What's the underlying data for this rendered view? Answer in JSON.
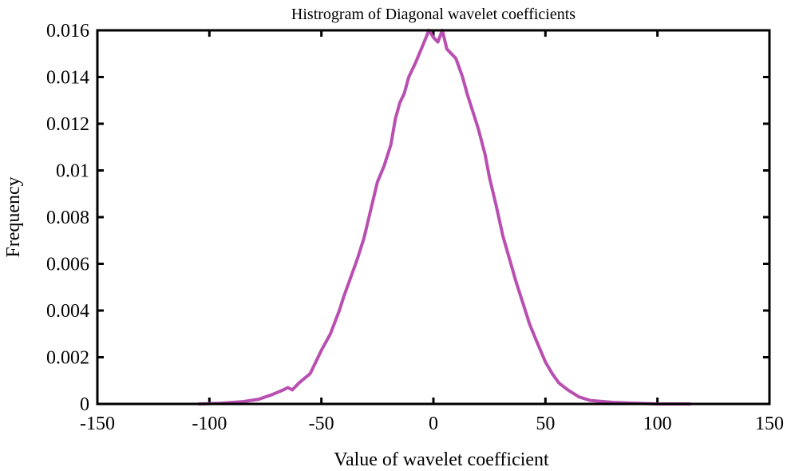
{
  "chart_data": {
    "type": "line",
    "title": "Histrogram of Diagonal wavelet coefficients",
    "xlabel": "Value of wavelet coefficient",
    "ylabel": "Frequency",
    "xlim": [
      -150,
      150
    ],
    "ylim": [
      0,
      0.016
    ],
    "xticks": [
      "-150",
      "-100",
      "-50",
      "0",
      "50",
      "100",
      "150"
    ],
    "yticks": [
      "0",
      "0.002",
      "0.004",
      "0.006",
      "0.008",
      "0.01",
      "0.012",
      "0.014",
      "0.016"
    ],
    "grid": false,
    "line_color": "#b94fb0",
    "series": [
      {
        "x": [
          -105,
          -95,
          -85,
          -78,
          -72,
          -67,
          -65,
          -63,
          -60,
          -55,
          -52,
          -50,
          -46,
          -42,
          -40,
          -37,
          -34,
          -31,
          -28,
          -25,
          -22,
          -19,
          -17,
          -15,
          -13,
          -11,
          -8,
          -5,
          -2,
          0,
          2,
          4,
          6,
          8,
          10,
          13,
          15,
          18,
          20,
          23,
          25,
          28,
          31,
          34,
          37,
          40,
          43,
          46,
          50,
          53,
          56,
          60,
          65,
          70,
          80,
          90,
          100,
          115
        ],
        "y": [
          0,
          3e-05,
          0.0001,
          0.0002,
          0.0004,
          0.0006,
          0.0007,
          0.0006,
          0.0009,
          0.0013,
          0.0019,
          0.0023,
          0.003,
          0.004,
          0.0046,
          0.0054,
          0.0062,
          0.0071,
          0.0083,
          0.0095,
          0.0102,
          0.0111,
          0.0122,
          0.0129,
          0.0133,
          0.014,
          0.0146,
          0.0153,
          0.016,
          0.0157,
          0.0155,
          0.016,
          0.0152,
          0.015,
          0.0148,
          0.014,
          0.0133,
          0.0124,
          0.0118,
          0.0107,
          0.0097,
          0.0085,
          0.0072,
          0.0062,
          0.0052,
          0.0043,
          0.0034,
          0.0027,
          0.0018,
          0.0013,
          0.0009,
          0.0006,
          0.0003,
          0.00015,
          7e-05,
          3e-05,
          0,
          0
        ]
      }
    ]
  }
}
